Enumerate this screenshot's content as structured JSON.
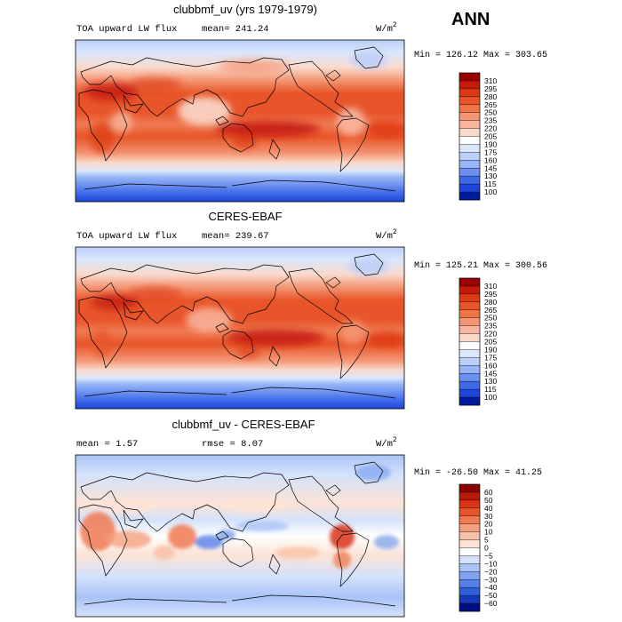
{
  "season": "ANN",
  "panels": [
    {
      "title": "clubbmf_uv (yrs 1979-1979)",
      "variable": "TOA upward LW flux",
      "stat_text": "mean= 241.24",
      "unit": "W/m",
      "unit_exp": "2",
      "minmax_text": "Min = 126.12 Max = 303.65",
      "colorbar": {
        "levels": [
          "310",
          "295",
          "280",
          "265",
          "250",
          "235",
          "220",
          "205",
          "190",
          "175",
          "160",
          "145",
          "130",
          "115",
          "100"
        ],
        "colors": [
          "#990000",
          "#c41a0a",
          "#dd3a14",
          "#e85529",
          "#ef7446",
          "#f49573",
          "#f8b69f",
          "#fad9cb",
          "#ffffff",
          "#dbe7fc",
          "#bccefa",
          "#96b4f6",
          "#6b90f0",
          "#3d68e8",
          "#1e44d8",
          "#001a9c"
        ]
      }
    },
    {
      "title": "CERES-EBAF",
      "variable": "TOA upward LW flux",
      "stat_text": "mean= 239.67",
      "unit": "W/m",
      "unit_exp": "2",
      "minmax_text": "Min = 125.21 Max = 300.56",
      "colorbar": {
        "levels": [
          "310",
          "295",
          "280",
          "265",
          "250",
          "235",
          "220",
          "205",
          "190",
          "175",
          "160",
          "145",
          "130",
          "115",
          "100"
        ],
        "colors": [
          "#990000",
          "#c41a0a",
          "#dd3a14",
          "#e85529",
          "#ef7446",
          "#f49573",
          "#f8b69f",
          "#fad9cb",
          "#ffffff",
          "#dbe7fc",
          "#bccefa",
          "#96b4f6",
          "#6b90f0",
          "#3d68e8",
          "#1e44d8",
          "#001a9c"
        ]
      }
    },
    {
      "title": "clubbmf_uv - CERES-EBAF",
      "stat_text": "mean =   1.57",
      "stat2_text": "rmse =   8.07",
      "unit": "W/m",
      "unit_exp": "2",
      "minmax_text": "Min = -26.50 Max =  41.25",
      "colorbar": {
        "levels": [
          "60",
          "50",
          "40",
          "30",
          "20",
          "10",
          "5",
          "0",
          "−5",
          "−10",
          "−20",
          "−30",
          "−40",
          "−50",
          "−60"
        ],
        "colors": [
          "#8c0000",
          "#b81a0a",
          "#d93416",
          "#e8552b",
          "#f07a52",
          "#f5a07e",
          "#f9c2a8",
          "#fce3d6",
          "#ffffff",
          "#d4e2fb",
          "#a9c3f6",
          "#7ea2ef",
          "#5580e8",
          "#2f5ed9",
          "#1438b8",
          "#000f80"
        ]
      }
    }
  ]
}
